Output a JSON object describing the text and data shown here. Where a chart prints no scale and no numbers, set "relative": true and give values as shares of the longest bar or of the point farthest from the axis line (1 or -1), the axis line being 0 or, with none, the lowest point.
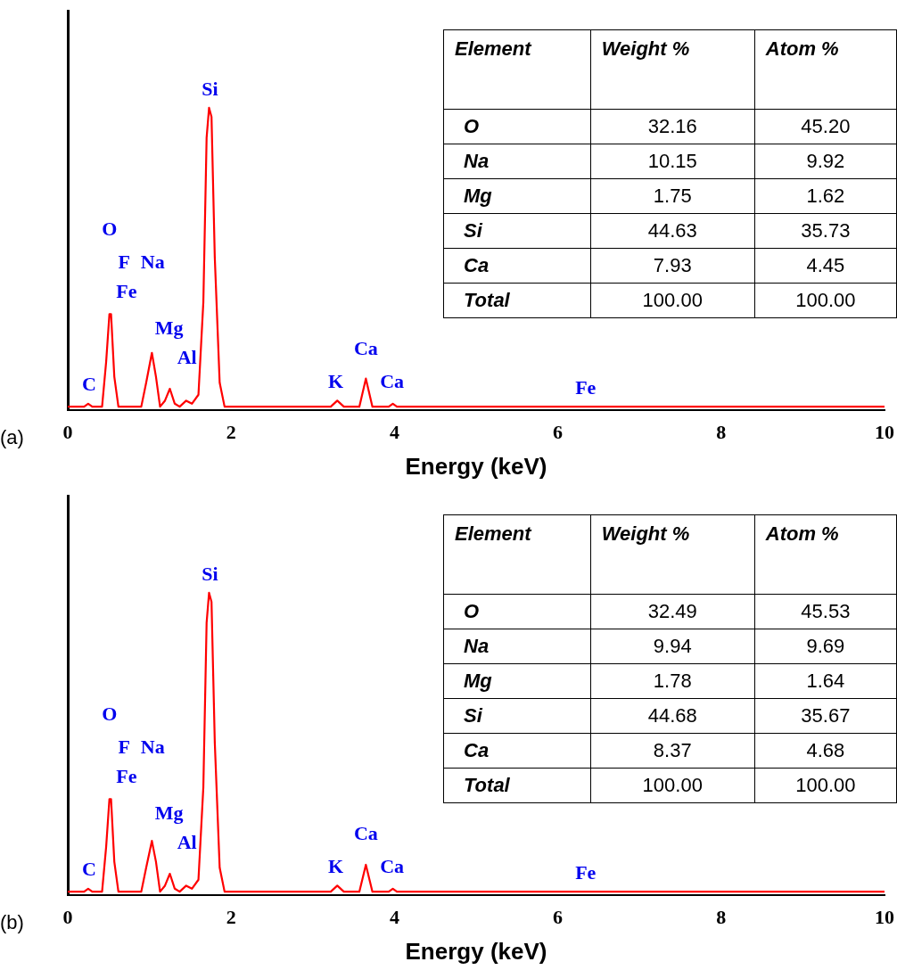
{
  "chart_data": [
    {
      "type": "line",
      "title": "(a)",
      "xlabel": "Energy (keV)",
      "relative": true,
      "xlim": [
        0,
        10
      ],
      "xticks": [
        0,
        2,
        4,
        6,
        8,
        10
      ],
      "legend": false,
      "grid": false,
      "marker": "none",
      "series": [
        {
          "color": "#ff0000",
          "x": [
            0,
            0.2,
            0.25,
            0.3,
            0.42,
            0.47,
            0.51,
            0.53,
            0.57,
            0.62,
            0.9,
            0.96,
            1.03,
            1.08,
            1.13,
            1.19,
            1.25,
            1.31,
            1.37,
            1.45,
            1.52,
            1.6,
            1.66,
            1.7,
            1.73,
            1.76,
            1.8,
            1.86,
            1.92,
            3.22,
            3.3,
            3.38,
            3.57,
            3.65,
            3.73,
            3.93,
            3.98,
            4.03,
            10
          ],
          "values": [
            0,
            0,
            0.01,
            0,
            0,
            0.15,
            0.31,
            0.31,
            0.1,
            0,
            0,
            0.08,
            0.18,
            0.1,
            0,
            0.02,
            0.06,
            0.01,
            0,
            0.02,
            0.01,
            0.04,
            0.35,
            0.9,
            1,
            0.97,
            0.5,
            0.08,
            0,
            0,
            0.02,
            0,
            0,
            0.094,
            0,
            0,
            0.01,
            0,
            0
          ]
        }
      ],
      "annotations": [
        "Si",
        "O",
        "F",
        "Na",
        "Fe",
        "Mg",
        "Al",
        "C",
        "K",
        "Ca",
        "Ca",
        "Fe",
        "Element",
        "Weight %",
        "Atom %",
        "O",
        "32.16",
        "45.20",
        "Na",
        "10.15",
        "9.92",
        "Mg",
        "1.75",
        "1.62",
        "Si",
        "44.63",
        "35.73",
        "Ca",
        "7.93",
        "4.45",
        "Total",
        "100.00",
        "100.00"
      ]
    },
    {
      "type": "line",
      "title": "(b)",
      "xlabel": "Energy (keV)",
      "relative": true,
      "xlim": [
        0,
        10
      ],
      "xticks": [
        0,
        2,
        4,
        6,
        8,
        10
      ],
      "legend": false,
      "grid": false,
      "marker": "none",
      "series": [
        {
          "color": "#ff0000",
          "x": [
            0,
            0.2,
            0.25,
            0.3,
            0.42,
            0.47,
            0.51,
            0.53,
            0.57,
            0.62,
            0.9,
            0.96,
            1.03,
            1.08,
            1.13,
            1.19,
            1.25,
            1.31,
            1.37,
            1.45,
            1.52,
            1.6,
            1.66,
            1.7,
            1.73,
            1.76,
            1.8,
            1.86,
            1.92,
            3.22,
            3.3,
            3.38,
            3.57,
            3.65,
            3.73,
            3.93,
            3.98,
            4.03,
            10
          ],
          "values": [
            0,
            0,
            0.01,
            0,
            0,
            0.15,
            0.31,
            0.31,
            0.1,
            0,
            0,
            0.08,
            0.17,
            0.1,
            0,
            0.02,
            0.06,
            0.01,
            0,
            0.02,
            0.01,
            0.04,
            0.35,
            0.9,
            1,
            0.97,
            0.5,
            0.08,
            0,
            0,
            0.02,
            0,
            0,
            0.09,
            0,
            0,
            0.01,
            0,
            0
          ]
        }
      ],
      "annotations": [
        "Si",
        "O",
        "F",
        "Na",
        "Fe",
        "Mg",
        "Al",
        "C",
        "K",
        "Ca",
        "Ca",
        "Fe",
        "Element",
        "Weight %",
        "Atom %",
        "O",
        "32.49",
        "45.53",
        "Na",
        "9.94",
        "9.69",
        "Mg",
        "1.78",
        "1.64",
        "Si",
        "44.68",
        "35.67",
        "Ca",
        "8.37",
        "4.68",
        "Total",
        "100.00",
        "100.00"
      ]
    }
  ]
}
